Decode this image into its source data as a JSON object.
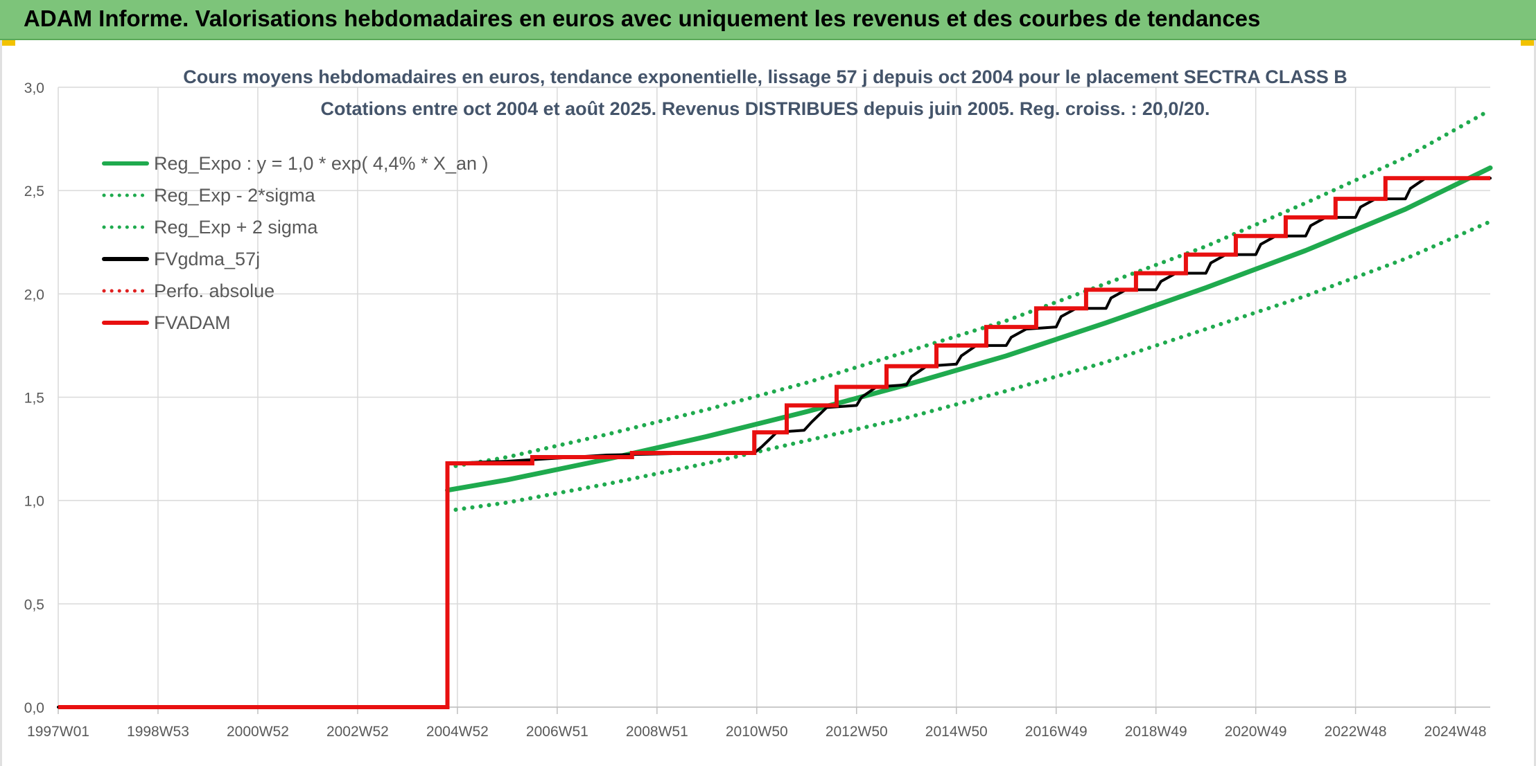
{
  "page": {
    "banner_title": "ADAM Informe. Valorisations hebdomadaires en euros avec uniquement les revenus et des courbes de tendances"
  },
  "chart_data": {
    "type": "line",
    "title": "Cours moyens hebdomadaires en euros, tendance exponentielle, lissage 57 j depuis oct 2004 pour le placement SECTRA CLASS B",
    "subtitle": "Cotations entre oct 2004 et août 2025. Revenus DISTRIBUES depuis juin 2005. Reg. croiss. : 20,0/20.",
    "xlabel": "",
    "ylabel": "",
    "x_tick_labels": [
      "1997W01",
      "1998W53",
      "2000W52",
      "2002W52",
      "2004W52",
      "2006W51",
      "2008W51",
      "2010W50",
      "2012W50",
      "2014W50",
      "2016W49",
      "2018W49",
      "2020W49",
      "2022W48",
      "2024W48"
    ],
    "x_tick_years": [
      1997.0,
      1999.0,
      2001.0,
      2003.0,
      2005.0,
      2007.0,
      2009.0,
      2011.0,
      2013.0,
      2015.0,
      2017.0,
      2019.0,
      2021.0,
      2023.0,
      2025.0
    ],
    "xlim": [
      1997.0,
      2025.7
    ],
    "ylim": [
      0,
      3
    ],
    "y_ticks": [
      0,
      0.5,
      1,
      1.5,
      2,
      2.5,
      3
    ],
    "y_tick_labels": [
      "0,0",
      "0,5",
      "1,0",
      "1,5",
      "2,0",
      "2,5",
      "3,0"
    ],
    "grid": true,
    "legend_position": "top-left",
    "series": [
      {
        "name": "Reg_Expo : y = 1,0 * exp( 4,4% *  X_an )",
        "color": "#1faa4e",
        "style": "solid",
        "x": [
          2004.8,
          2006,
          2008,
          2010,
          2012,
          2014,
          2016,
          2018,
          2020,
          2022,
          2024,
          2025.7
        ],
        "y": [
          1.05,
          1.1,
          1.2,
          1.31,
          1.43,
          1.56,
          1.7,
          1.86,
          2.03,
          2.21,
          2.41,
          2.61
        ]
      },
      {
        "name": "Reg_Exp - 2*sigma",
        "color": "#1faa4e",
        "style": "dotted",
        "x": [
          2004.8,
          2006,
          2008,
          2010,
          2012,
          2014,
          2016,
          2018,
          2020,
          2022,
          2024,
          2025.7
        ],
        "y": [
          0.95,
          0.99,
          1.08,
          1.18,
          1.29,
          1.4,
          1.53,
          1.67,
          1.83,
          1.99,
          2.17,
          2.35
        ]
      },
      {
        "name": "Reg_Exp + 2 sigma",
        "color": "#1faa4e",
        "style": "dotted",
        "x": [
          2004.8,
          2006,
          2008,
          2010,
          2012,
          2014,
          2016,
          2018,
          2020,
          2022,
          2024,
          2025.7
        ],
        "y": [
          1.16,
          1.21,
          1.32,
          1.44,
          1.57,
          1.72,
          1.87,
          2.05,
          2.23,
          2.44,
          2.66,
          2.89
        ]
      },
      {
        "name": "FVgdma_57j",
        "color": "#000000",
        "style": "solid",
        "x": [
          1997.0,
          2004.8,
          2004.8,
          2006,
          2008,
          2010,
          2010.95,
          2011.1,
          2011.4,
          2011.95,
          2012.1,
          2012.4,
          2013.0,
          2013.1,
          2013.4,
          2014.0,
          2014.1,
          2014.4,
          2015.0,
          2015.1,
          2015.4,
          2016.0,
          2016.1,
          2016.4,
          2017.0,
          2017.1,
          2017.4,
          2018.0,
          2018.1,
          2018.4,
          2019.0,
          2019.1,
          2019.4,
          2020.0,
          2020.1,
          2020.4,
          2021.0,
          2021.1,
          2021.4,
          2022.0,
          2022.1,
          2022.4,
          2023.0,
          2023.1,
          2023.4,
          2024.0,
          2024.1,
          2024.4,
          2025.0,
          2025.1,
          2025.4,
          2025.7
        ],
        "y": [
          0,
          0,
          1.18,
          1.19,
          1.22,
          1.23,
          1.23,
          1.26,
          1.33,
          1.34,
          1.38,
          1.45,
          1.46,
          1.5,
          1.55,
          1.56,
          1.6,
          1.65,
          1.66,
          1.7,
          1.75,
          1.75,
          1.79,
          1.83,
          1.84,
          1.89,
          1.93,
          1.93,
          1.98,
          2.02,
          2.02,
          2.06,
          2.1,
          2.1,
          2.15,
          2.19,
          2.19,
          2.24,
          2.28,
          2.28,
          2.33,
          2.37,
          2.37,
          2.42,
          2.46,
          2.46,
          2.51,
          2.56,
          2.56,
          2.56,
          2.56,
          2.56
        ]
      },
      {
        "name": "Perfo. absolue",
        "color": "#e02020",
        "style": "dotted",
        "x": [],
        "y": []
      },
      {
        "name": "FVADAM",
        "color": "#e81010",
        "style": "solid",
        "x": [
          1997.0,
          2004.8,
          2004.8,
          2006.5,
          2006.5,
          2008.5,
          2008.5,
          2010.95,
          2010.95,
          2011.6,
          2011.6,
          2012.6,
          2012.6,
          2013.6,
          2013.6,
          2014.6,
          2014.6,
          2015.6,
          2015.6,
          2016.6,
          2016.6,
          2017.6,
          2017.6,
          2018.6,
          2018.6,
          2019.6,
          2019.6,
          2020.6,
          2020.6,
          2021.6,
          2021.6,
          2022.6,
          2022.6,
          2023.6,
          2023.6,
          2024.6,
          2024.6,
          2025.7
        ],
        "y": [
          0,
          0,
          1.18,
          1.18,
          1.21,
          1.21,
          1.23,
          1.23,
          1.33,
          1.33,
          1.46,
          1.46,
          1.55,
          1.55,
          1.65,
          1.65,
          1.75,
          1.75,
          1.84,
          1.84,
          1.93,
          1.93,
          2.02,
          2.02,
          2.1,
          2.1,
          2.19,
          2.19,
          2.28,
          2.28,
          2.37,
          2.37,
          2.46,
          2.46,
          2.56,
          2.56,
          2.56,
          2.56
        ]
      }
    ]
  }
}
